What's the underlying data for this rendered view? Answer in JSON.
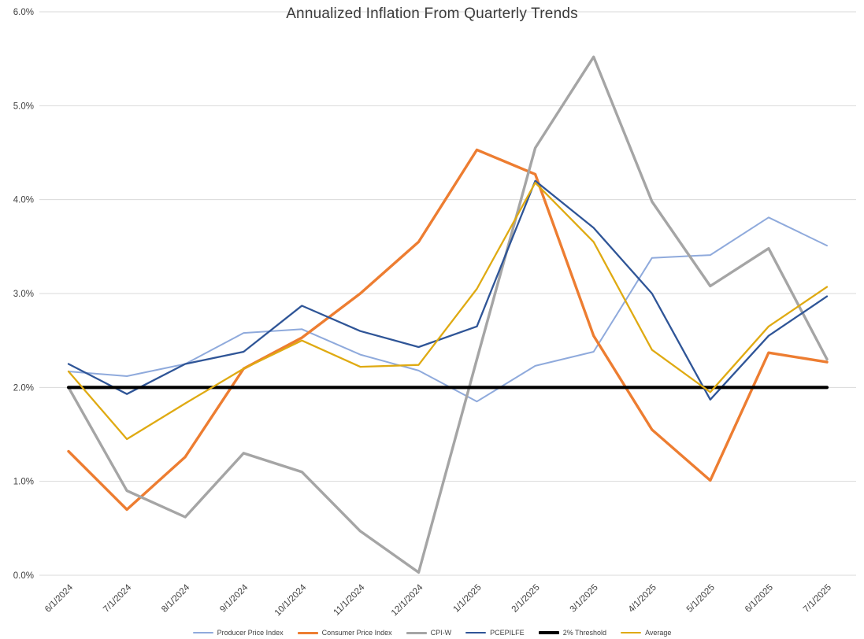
{
  "page": {
    "background": "#ffffff"
  },
  "chart_data": {
    "type": "line",
    "title": "Annualized Inflation From Quarterly Trends",
    "categories": [
      "6/1/2024",
      "7/1/2024",
      "8/1/2024",
      "9/1/2024",
      "10/1/2024",
      "11/1/2024",
      "12/1/2024",
      "1/1/2025",
      "2/1/2025",
      "3/1/2025",
      "4/1/2025",
      "5/1/2025",
      "6/1/2025",
      "7/1/2025"
    ],
    "series": [
      {
        "name": "Producer Price Index",
        "color": "#8faadc",
        "width": 2,
        "values": [
          2.17,
          2.12,
          2.25,
          2.58,
          2.62,
          2.35,
          2.18,
          1.85,
          2.23,
          2.38,
          3.38,
          3.41,
          3.81,
          3.51
        ]
      },
      {
        "name": "Consumer Price Index",
        "color": "#ed7d31",
        "width": 3.4,
        "values": [
          1.32,
          0.7,
          1.26,
          2.2,
          2.53,
          3.0,
          3.55,
          4.53,
          4.27,
          2.55,
          1.55,
          1.01,
          2.37,
          2.27
        ]
      },
      {
        "name": "CPI-W",
        "color": "#a5a5a5",
        "width": 3.4,
        "values": [
          2.0,
          0.9,
          0.62,
          1.3,
          1.1,
          0.47,
          0.03,
          2.3,
          4.55,
          5.52,
          3.98,
          3.08,
          3.48,
          2.3
        ]
      },
      {
        "name": "PCEPILFE",
        "color": "#2f5597",
        "width": 2.3,
        "values": [
          2.25,
          1.93,
          2.25,
          2.38,
          2.87,
          2.6,
          2.43,
          2.65,
          4.2,
          3.7,
          3.0,
          1.87,
          2.55,
          2.97
        ]
      },
      {
        "name": "2% Threshold",
        "color": "#000000",
        "width": 4.2,
        "values": [
          2.0,
          2.0,
          2.0,
          2.0,
          2.0,
          2.0,
          2.0,
          2.0,
          2.0,
          2.0,
          2.0,
          2.0,
          2.0,
          2.0
        ]
      },
      {
        "name": "Average",
        "color": "#dfaa12",
        "width": 2.3,
        "values": [
          2.17,
          1.45,
          1.83,
          2.2,
          2.5,
          2.22,
          2.24,
          3.05,
          4.18,
          3.55,
          2.4,
          1.95,
          2.65,
          3.07
        ]
      }
    ],
    "ylim": [
      0,
      6
    ],
    "y_tick_step": 1,
    "y_tick_labels": [
      "0.0%",
      "1.0%",
      "2.0%",
      "3.0%",
      "4.0%",
      "5.0%",
      "6.0%"
    ],
    "grid": true,
    "legend_position": "bottom",
    "grid_color": "#d9d9d9",
    "label_color": "#404040",
    "title_color": "#3b3b3b"
  }
}
